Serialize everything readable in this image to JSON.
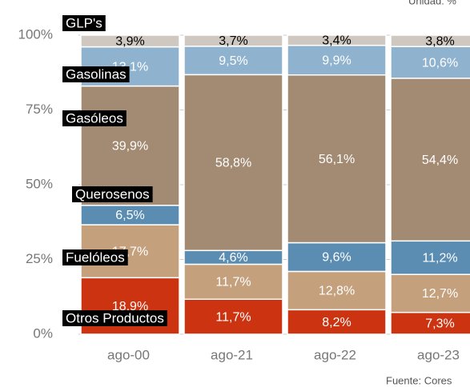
{
  "chart_data": {
    "type": "stacked_bar",
    "unit_note": "Unidad: %",
    "source": "Fuente: Cores",
    "categories": [
      "ago-00",
      "ago-21",
      "ago-22",
      "ago-23"
    ],
    "series": [
      {
        "name": "Otros Productos",
        "color": "#cc3311",
        "values": [
          18.9,
          11.7,
          8.2,
          7.3
        ],
        "value_labels": [
          "18,9%",
          "11,7%",
          "8,2%",
          "7,3%"
        ]
      },
      {
        "name": "Fuelóleos",
        "color": "#c4a07c",
        "values": [
          17.7,
          11.7,
          12.8,
          12.7
        ],
        "value_labels": [
          "17,7%",
          "11,7%",
          "12,8%",
          "12,7%"
        ]
      },
      {
        "name": "Querosenos",
        "color": "#5b8db2",
        "values": [
          6.5,
          4.6,
          9.6,
          11.2
        ],
        "value_labels": [
          "6,5%",
          "4,6%",
          "9,6%",
          "11,2%"
        ]
      },
      {
        "name": "Gasóleos",
        "color": "#a38b73",
        "values": [
          39.9,
          58.8,
          56.1,
          54.4
        ],
        "value_labels": [
          "39,9%",
          "58,8%",
          "56,1%",
          "54,4%"
        ]
      },
      {
        "name": "Gasolinas",
        "color": "#8fb3cf",
        "values": [
          13.1,
          9.5,
          9.9,
          10.6
        ],
        "value_labels": [
          "13,1%",
          "9,5%",
          "9,9%",
          "10,6%"
        ]
      },
      {
        "name": "GLP's",
        "color": "#cfc8c0",
        "values": [
          3.9,
          3.7,
          3.4,
          3.8
        ],
        "value_labels": [
          "3,9%",
          "3,7%",
          "3,4%",
          "3,8%"
        ]
      }
    ],
    "ylim": [
      0,
      100
    ],
    "yticks": [
      {
        "value": 0,
        "label": "0%"
      },
      {
        "value": 25,
        "label": "25%"
      },
      {
        "value": 50,
        "label": "50%"
      },
      {
        "value": 75,
        "label": "75%"
      },
      {
        "value": 100,
        "label": "100%"
      }
    ],
    "grid": true
  }
}
